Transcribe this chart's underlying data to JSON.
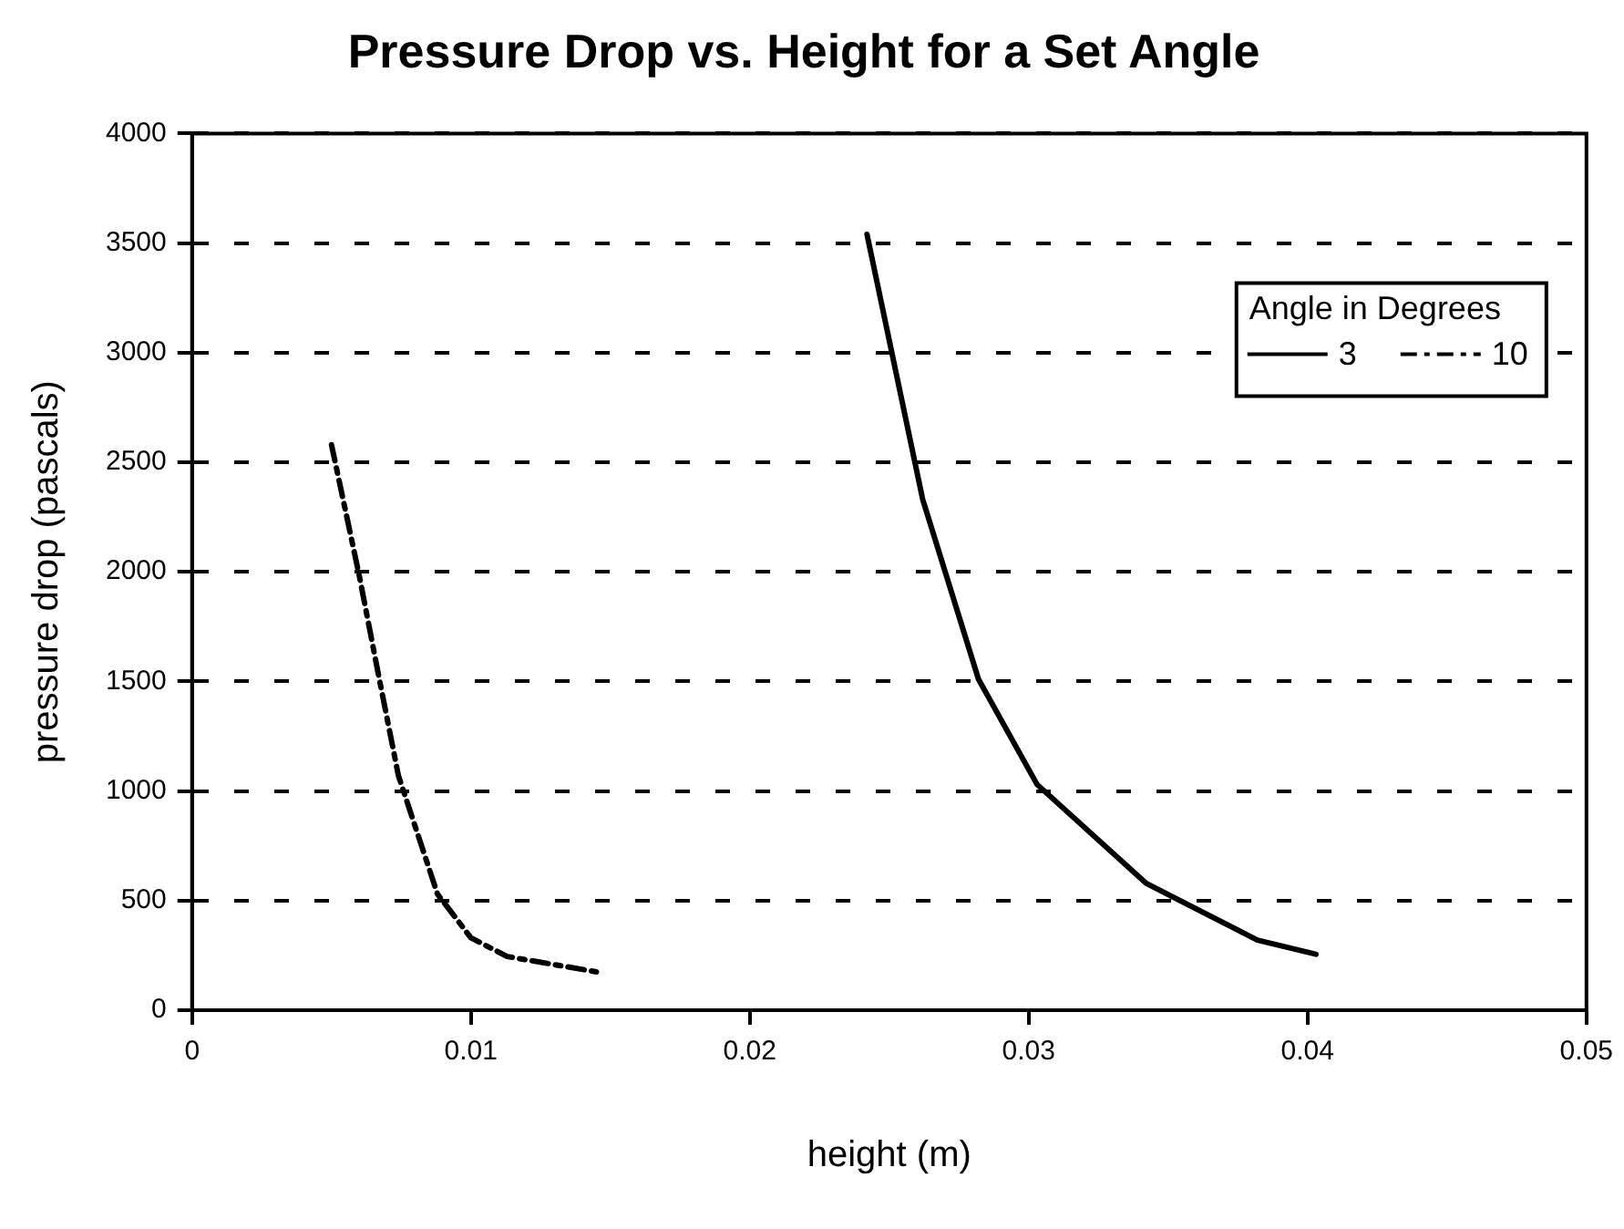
{
  "chart_data": {
    "type": "line",
    "title": "Pressure Drop vs. Height for a Set Angle",
    "xlabel": "height (m)",
    "ylabel": "pressure drop (pascals)",
    "legend_title": "Angle in Degrees",
    "legend": "top right",
    "grid": "y",
    "marker": "none",
    "xlim": [
      0,
      0.05
    ],
    "xticks": [
      0,
      0.01,
      0.02,
      0.03,
      0.04,
      0.05
    ],
    "ylim": [
      0,
      4000
    ],
    "yticks": [
      0,
      500,
      1000,
      1500,
      2000,
      2500,
      3000,
      3500,
      4000
    ],
    "series": [
      {
        "name": "3",
        "color": "#000000",
        "line_style": "solid",
        "x": [
          0.0242,
          0.0262,
          0.0282,
          0.0303,
          0.0342,
          0.0382,
          0.0403
        ],
        "values": [
          3540,
          2330,
          1510,
          1030,
          580,
          320,
          255
        ]
      },
      {
        "name": "10",
        "color": "#000000",
        "line_style": "dashed",
        "x": [
          0.005,
          0.006,
          0.0067,
          0.0074,
          0.0088,
          0.01,
          0.0113,
          0.0145
        ],
        "values": [
          2580,
          1980,
          1520,
          1070,
          530,
          330,
          245,
          175
        ]
      }
    ]
  }
}
